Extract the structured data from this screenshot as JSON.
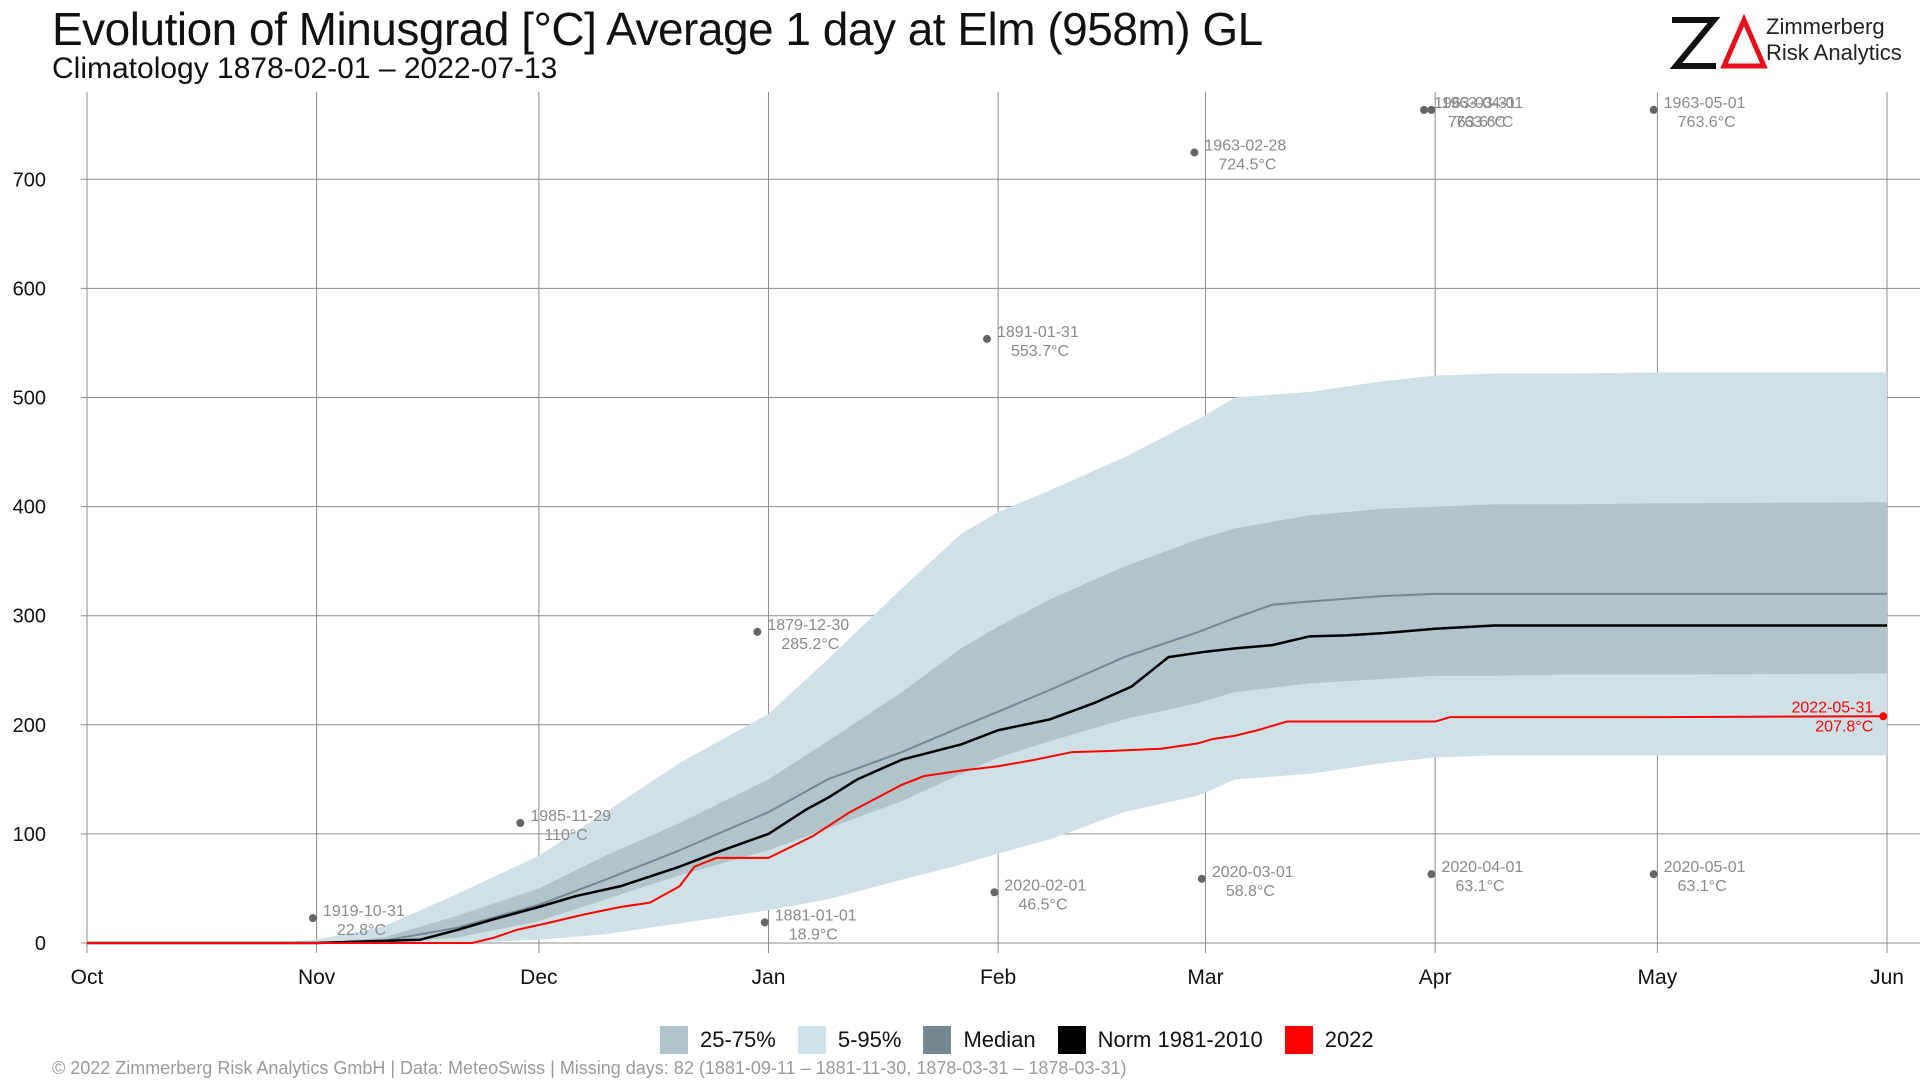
{
  "header": {
    "title": "Evolution of Minusgrad [°C] Average 1 day at Elm (958m) GL",
    "subtitle": "Climatology 1878-02-01 – 2022-07-13"
  },
  "brand": {
    "name_line1": "Zimmerberg",
    "name_line2": "Risk Analytics",
    "logo_letters": "ZA",
    "accent_color": "#e8101a"
  },
  "colors": {
    "band_25_75": "#b0c4c9",
    "band_5_95": "#cfe1e6",
    "median": "#738890",
    "norm": "#000000",
    "year2022": "#ff0000",
    "grid": "#8c8c8c",
    "annotation": "#8a8a8a"
  },
  "legend": {
    "items": [
      {
        "label": "25-75%",
        "color": "#b0c4c9"
      },
      {
        "label": "5-95%",
        "color": "#cfe1e6"
      },
      {
        "label": "Median",
        "color": "#738890"
      },
      {
        "label": "Norm 1981-2010",
        "color": "#000000"
      },
      {
        "label": "2022",
        "color": "#ff0000"
      }
    ]
  },
  "footer": {
    "text": "©  2022 Zimmerberg Risk Analytics GmbH | Data: MeteoSwiss | Missing days: 82 (1881-09-11 – 1881-11-30, 1878-03-31 – 1878-03-31)"
  },
  "chart_data": {
    "type": "area",
    "x_unit": "days since Oct 1",
    "xlim": [
      0,
      243
    ],
    "ylim": [
      0,
      780
    ],
    "x_ticks": [
      {
        "label": "Oct",
        "x": 0
      },
      {
        "label": "Nov",
        "x": 31
      },
      {
        "label": "Dec",
        "x": 61
      },
      {
        "label": "Jan",
        "x": 92
      },
      {
        "label": "Feb",
        "x": 123
      },
      {
        "label": "Mar",
        "x": 151
      },
      {
        "label": "Apr",
        "x": 182
      },
      {
        "label": "May",
        "x": 212
      },
      {
        "label": "Jun",
        "x": 243
      }
    ],
    "y_ticks": [
      0,
      100,
      200,
      300,
      400,
      500,
      600,
      700
    ],
    "grid": true,
    "legend_position": "bottom",
    "series": [
      {
        "name": "5-95%",
        "kind": "band",
        "x": [
          0,
          25,
          31,
          40,
          50,
          61,
          70,
          80,
          92,
          100,
          110,
          118,
          123,
          130,
          140,
          150,
          155,
          165,
          175,
          182,
          190,
          200,
          212,
          243
        ],
        "lower": [
          0,
          0,
          0,
          0,
          0,
          3,
          8,
          18,
          30,
          40,
          58,
          72,
          82,
          95,
          120,
          135,
          150,
          155,
          165,
          170,
          172,
          172,
          172,
          172
        ],
        "upper": [
          0,
          0,
          3,
          15,
          45,
          80,
          120,
          165,
          210,
          260,
          325,
          375,
          395,
          415,
          445,
          480,
          500,
          505,
          515,
          520,
          522,
          522,
          523,
          523
        ]
      },
      {
        "name": "25-75%",
        "kind": "band",
        "x": [
          0,
          25,
          31,
          40,
          50,
          61,
          70,
          80,
          92,
          100,
          110,
          118,
          123,
          130,
          140,
          150,
          155,
          165,
          175,
          182,
          190,
          200,
          212,
          243
        ],
        "lower": [
          0,
          0,
          0,
          0,
          5,
          20,
          40,
          62,
          85,
          105,
          130,
          155,
          170,
          185,
          205,
          220,
          230,
          238,
          242,
          245,
          245,
          246,
          246,
          247
        ],
        "upper": [
          0,
          0,
          0,
          5,
          25,
          50,
          80,
          110,
          150,
          185,
          230,
          270,
          290,
          315,
          345,
          370,
          380,
          392,
          398,
          400,
          402,
          402,
          403,
          404
        ]
      },
      {
        "name": "Median",
        "kind": "line",
        "x": [
          0,
          31,
          40,
          50,
          61,
          70,
          80,
          92,
          100,
          110,
          118,
          123,
          130,
          140,
          150,
          155,
          160,
          165,
          175,
          182,
          200,
          212,
          243
        ],
        "values": [
          0,
          0,
          2,
          14,
          35,
          58,
          85,
          120,
          150,
          175,
          198,
          212,
          232,
          262,
          285,
          298,
          310,
          313,
          318,
          320,
          320,
          320,
          320
        ]
      },
      {
        "name": "Norm 1981-2010",
        "kind": "line",
        "x": [
          0,
          31,
          45,
          50,
          55,
          61,
          66,
          72,
          80,
          85,
          92,
          97,
          100,
          104,
          110,
          118,
          123,
          130,
          136,
          141,
          146,
          151,
          155,
          160,
          165,
          170,
          175,
          182,
          190,
          200,
          212,
          243
        ],
        "values": [
          0,
          0,
          3,
          12,
          22,
          33,
          43,
          52,
          70,
          83,
          100,
          122,
          133,
          150,
          168,
          182,
          195,
          205,
          220,
          235,
          262,
          267,
          270,
          273,
          281,
          282,
          284,
          288,
          291,
          291,
          291,
          291
        ]
      },
      {
        "name": "2022",
        "kind": "line",
        "x": [
          0,
          52,
          55,
          58,
          62,
          67,
          72,
          76,
          80,
          82,
          85,
          92,
          95,
          98,
          103,
          110,
          113,
          118,
          123,
          128,
          133,
          138,
          145,
          150,
          152,
          155,
          158,
          162,
          170,
          182,
          184,
          200,
          212,
          242
        ],
        "values": [
          0,
          0,
          5,
          12,
          18,
          26,
          33,
          37,
          52,
          70,
          78,
          78,
          88,
          98,
          120,
          145,
          153,
          158,
          162,
          168,
          175,
          176,
          178,
          183,
          187,
          190,
          195,
          203,
          203,
          203,
          207,
          207,
          207,
          207.8
        ]
      }
    ],
    "annotations": [
      {
        "x": 30.5,
        "y": 22.8,
        "date": "1919-10-31",
        "value": "22.8°C"
      },
      {
        "x": 58.5,
        "y": 110,
        "date": "1985-11-29",
        "value": "110°C"
      },
      {
        "x": 90.5,
        "y": 285.2,
        "date": "1879-12-30",
        "value": "285.2°C"
      },
      {
        "x": 91.5,
        "y": 18.9,
        "date": "1881-01-01",
        "value": "18.9°C"
      },
      {
        "x": 121.5,
        "y": 553.7,
        "date": "1891-01-31",
        "value": "553.7°C"
      },
      {
        "x": 122.5,
        "y": 46.5,
        "date": "2020-02-01",
        "value": "46.5°C"
      },
      {
        "x": 149.5,
        "y": 724.5,
        "date": "1963-02-28",
        "value": "724.5°C"
      },
      {
        "x": 150.5,
        "y": 58.8,
        "date": "2020-03-01",
        "value": "58.8°C"
      },
      {
        "x": 180.5,
        "y": 763.6,
        "date": "1963-03-31",
        "value": "763.6°C"
      },
      {
        "x": 181.5,
        "y": 763.6,
        "date": "1963-04-01",
        "value": "763.6°C"
      },
      {
        "x": 181.5,
        "y": 63.1,
        "date": "2020-04-01",
        "value": "63.1°C"
      },
      {
        "x": 211.5,
        "y": 763.6,
        "date": "1963-05-01",
        "value": "763.6°C"
      },
      {
        "x": 211.5,
        "y": 63.1,
        "date": "2020-05-01",
        "value": "63.1°C"
      },
      {
        "x": 242.5,
        "y": 207.8,
        "date": "2022-05-31",
        "value": "207.8°C"
      }
    ]
  }
}
